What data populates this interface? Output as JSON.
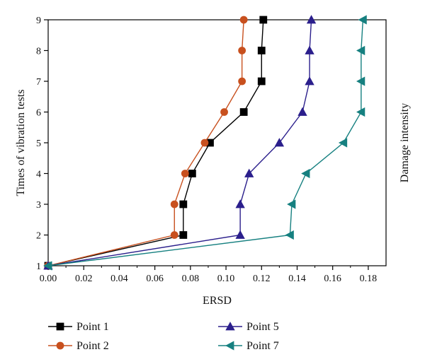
{
  "chart_data": {
    "type": "line",
    "xlabel": "ERSD",
    "ylabel": "Times of vibration tests",
    "right_label": "Damage intensity",
    "xlim": [
      0,
      0.19
    ],
    "ylim": [
      1,
      9
    ],
    "xticks": [
      "0.00",
      "0.02",
      "0.04",
      "0.06",
      "0.08",
      "0.10",
      "0.12",
      "0.14",
      "0.16",
      "0.18"
    ],
    "yticks": [
      "1",
      "2",
      "3",
      "4",
      "5",
      "6",
      "7",
      "8",
      "9"
    ],
    "grid": false,
    "legend_position": "bottom",
    "series": [
      {
        "name": "Point 1",
        "color": "#000000",
        "marker": "square",
        "points": [
          [
            0,
            1
          ],
          [
            0.076,
            2
          ],
          [
            0.076,
            3
          ],
          [
            0.081,
            4
          ],
          [
            0.091,
            5
          ],
          [
            0.11,
            6
          ],
          [
            0.12,
            7
          ],
          [
            0.12,
            8
          ],
          [
            0.121,
            9
          ]
        ]
      },
      {
        "name": "Point 2",
        "color": "#c8501e",
        "marker": "circle",
        "points": [
          [
            0,
            1
          ],
          [
            0.071,
            2
          ],
          [
            0.071,
            3
          ],
          [
            0.077,
            4
          ],
          [
            0.088,
            5
          ],
          [
            0.099,
            6
          ],
          [
            0.109,
            7
          ],
          [
            0.109,
            8
          ],
          [
            0.11,
            9
          ]
        ]
      },
      {
        "name": "Point 5",
        "color": "#2b1f8c",
        "marker": "triangle-up",
        "points": [
          [
            0,
            1
          ],
          [
            0.108,
            2
          ],
          [
            0.108,
            3
          ],
          [
            0.113,
            4
          ],
          [
            0.13,
            5
          ],
          [
            0.143,
            6
          ],
          [
            0.147,
            7
          ],
          [
            0.147,
            8
          ],
          [
            0.148,
            9
          ]
        ]
      },
      {
        "name": "Point 7",
        "color": "#168080",
        "marker": "triangle-left",
        "points": [
          [
            0,
            1
          ],
          [
            0.136,
            2
          ],
          [
            0.137,
            3
          ],
          [
            0.145,
            4
          ],
          [
            0.166,
            5
          ],
          [
            0.176,
            6
          ],
          [
            0.176,
            7
          ],
          [
            0.176,
            8
          ],
          [
            0.177,
            9
          ]
        ]
      }
    ]
  }
}
